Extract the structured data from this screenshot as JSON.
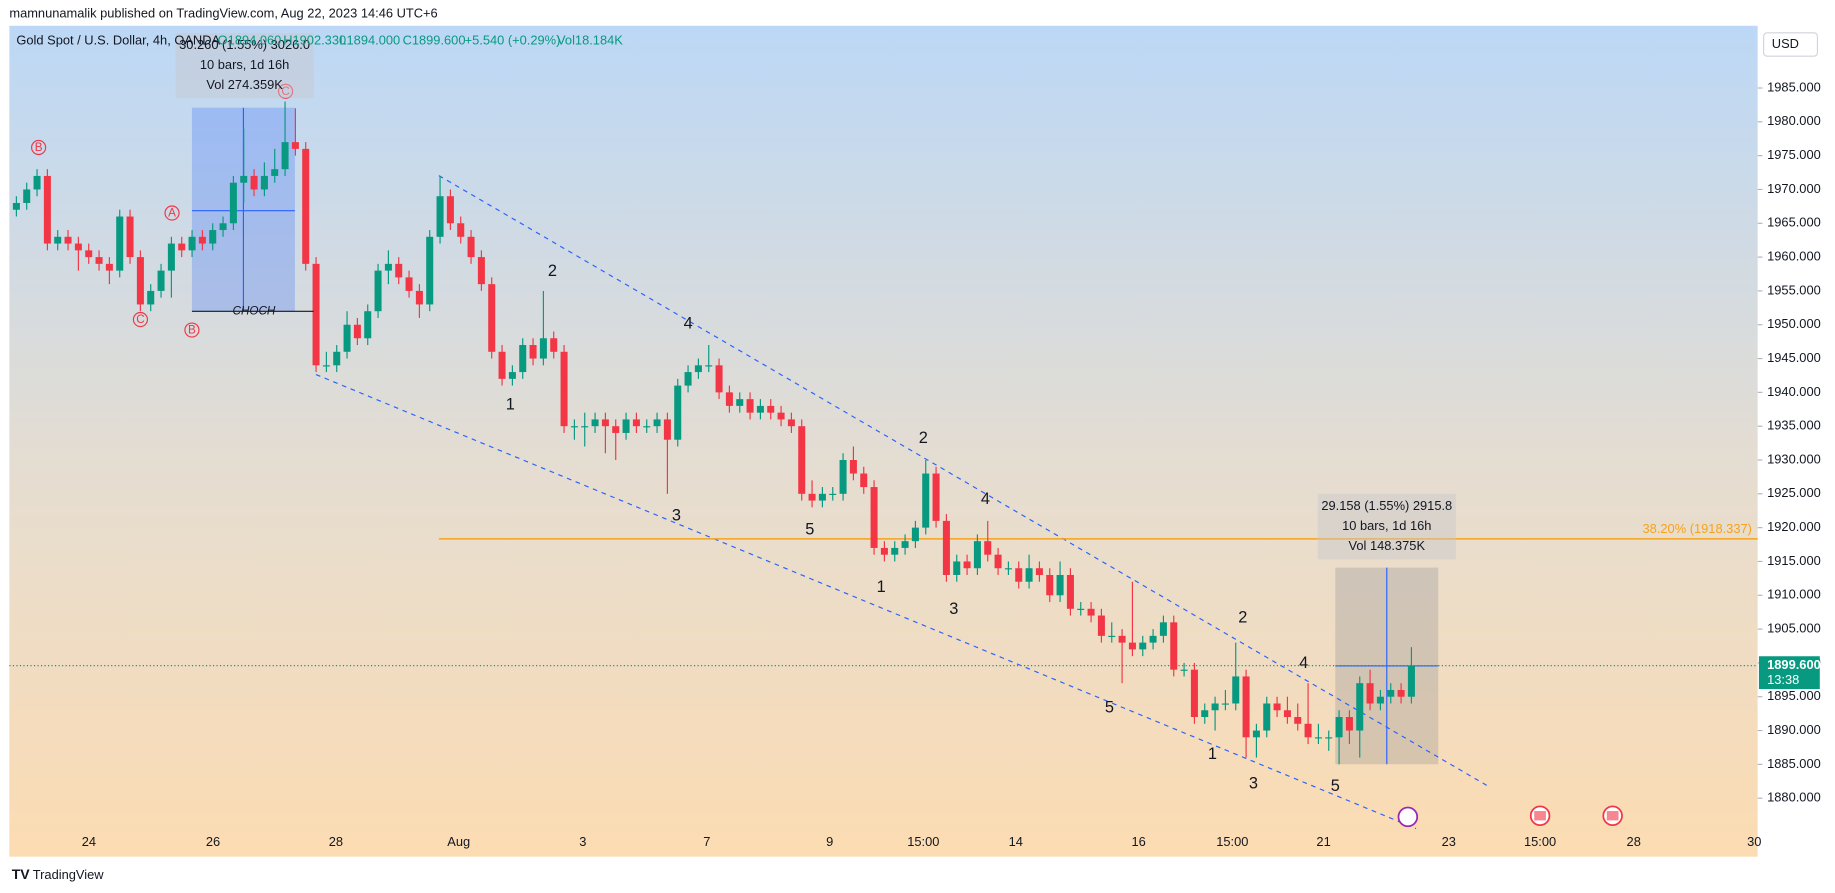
{
  "header": {
    "publisher": "mamnunamalik published on TradingView.com, Aug 22, 2023 14:46 UTC+6",
    "symbol": "Gold Spot / U.S. Dollar, 4h, OANDA",
    "open": "O1894.060",
    "high": "H1902.330",
    "low": "L1894.000",
    "close": "C1899.600",
    "change": "+5.540 (+0.29%)",
    "volume": "Vol18.184K",
    "currency": "USD"
  },
  "footer": {
    "brand": "TradingView"
  },
  "annotations": {
    "waves": [
      "2",
      "4",
      "1",
      "3",
      "5",
      "2",
      "4",
      "1",
      "3",
      "5",
      "2",
      "4",
      "1",
      "3",
      "5"
    ],
    "circled": [
      "B",
      "A",
      "C",
      "B",
      "C"
    ],
    "choch": "CHOCH",
    "measure1": [
      "30.260 (1.55%) 3026.0",
      "10 bars, 1d 16h",
      "Vol 274.359K"
    ],
    "measure2": [
      "29.158 (1.55%) 2915.8",
      "10 bars, 1d 16h",
      "Vol 148.375K"
    ],
    "fib": {
      "label": "38.20% (1918.337)",
      "price": 1918.337
    },
    "last_price": {
      "value": 1899.6,
      "label": "1899.600",
      "countdown": "13:38"
    }
  },
  "chart_data": {
    "type": "candlestick",
    "up_color": "#089981",
    "down_color": "#f23645",
    "grid": false,
    "ylim": [
      1871.35,
      1994.2
    ],
    "yticks": [
      {
        "value": 1880,
        "label": "1880.000"
      },
      {
        "value": 1885,
        "label": "1885.000"
      },
      {
        "value": 1890,
        "label": "1890.000"
      },
      {
        "value": 1895,
        "label": "1895.000"
      },
      {
        "value": 1900,
        "label": "1900.000"
      },
      {
        "value": 1905,
        "label": "1905.000"
      },
      {
        "value": 1910,
        "label": "1910.000"
      },
      {
        "value": 1915,
        "label": "1915.000"
      },
      {
        "value": 1920,
        "label": "1920.000"
      },
      {
        "value": 1925,
        "label": "1925.000"
      },
      {
        "value": 1930,
        "label": "1930.000"
      },
      {
        "value": 1935,
        "label": "1935.000"
      },
      {
        "value": 1940,
        "label": "1940.000"
      },
      {
        "value": 1945,
        "label": "1945.000"
      },
      {
        "value": 1950,
        "label": "1950.000"
      },
      {
        "value": 1955,
        "label": "1955.000"
      },
      {
        "value": 1960,
        "label": "1960.000"
      },
      {
        "value": 1965,
        "label": "1965.000"
      },
      {
        "value": 1970,
        "label": "1970.000"
      },
      {
        "value": 1975,
        "label": "1975.000"
      },
      {
        "value": 1980,
        "label": "1980.000"
      },
      {
        "value": 1985,
        "label": "1985.000"
      }
    ],
    "x_labels": [
      "24",
      "26",
      "28",
      "Aug",
      "3",
      "7",
      "9",
      "15:00",
      "14",
      "16",
      "15:00",
      "21",
      "23",
      "15:00",
      "28",
      "30"
    ],
    "candles": [
      [
        1967,
        1969,
        1966,
        1968
      ],
      [
        1968,
        1971,
        1967,
        1970
      ],
      [
        1970,
        1973,
        1969,
        1972
      ],
      [
        1972,
        1973,
        1961,
        1962
      ],
      [
        1962,
        1964,
        1961,
        1963
      ],
      [
        1963,
        1964,
        1961,
        1962
      ],
      [
        1962,
        1963,
        1958,
        1961
      ],
      [
        1961,
        1962,
        1959,
        1960
      ],
      [
        1960,
        1961,
        1958,
        1959
      ],
      [
        1959,
        1960,
        1956,
        1958
      ],
      [
        1958,
        1967,
        1957,
        1966
      ],
      [
        1966,
        1967,
        1959,
        1960
      ],
      [
        1960,
        1961,
        1952,
        1953
      ],
      [
        1953,
        1956,
        1952,
        1955
      ],
      [
        1955,
        1959,
        1954,
        1958
      ],
      [
        1958,
        1963,
        1954,
        1962
      ],
      [
        1962,
        1963,
        1960,
        1961
      ],
      [
        1961,
        1964,
        1960,
        1963
      ],
      [
        1963,
        1964,
        1961,
        1962
      ],
      [
        1962,
        1965,
        1961,
        1964
      ],
      [
        1964,
        1966,
        1963,
        1965
      ],
      [
        1965,
        1972,
        1964,
        1971
      ],
      [
        1971,
        1979,
        1968,
        1972
      ],
      [
        1972,
        1973,
        1969,
        1970
      ],
      [
        1970,
        1974,
        1969,
        1972
      ],
      [
        1972,
        1976,
        1971,
        1973
      ],
      [
        1973,
        1983,
        1972,
        1977
      ],
      [
        1977,
        1982,
        1975,
        1976
      ],
      [
        1976,
        1977,
        1958,
        1959
      ],
      [
        1959,
        1960,
        1943,
        1944
      ],
      [
        1944,
        1946,
        1943,
        1944
      ],
      [
        1944,
        1947,
        1943,
        1946
      ],
      [
        1946,
        1952,
        1945,
        1950
      ],
      [
        1950,
        1951,
        1947,
        1948
      ],
      [
        1948,
        1953,
        1947,
        1952
      ],
      [
        1952,
        1959,
        1951,
        1958
      ],
      [
        1958,
        1961,
        1956,
        1959
      ],
      [
        1959,
        1960,
        1956,
        1957
      ],
      [
        1957,
        1958,
        1954,
        1955
      ],
      [
        1955,
        1956,
        1951,
        1953
      ],
      [
        1953,
        1964,
        1952,
        1963
      ],
      [
        1963,
        1972,
        1962,
        1969
      ],
      [
        1969,
        1970,
        1964,
        1965
      ],
      [
        1965,
        1966,
        1962,
        1963
      ],
      [
        1963,
        1964,
        1959,
        1960
      ],
      [
        1960,
        1961,
        1955,
        1956
      ],
      [
        1956,
        1957,
        1945,
        1946
      ],
      [
        1946,
        1947,
        1941,
        1942
      ],
      [
        1942,
        1944,
        1941,
        1943
      ],
      [
        1943,
        1948,
        1942,
        1947
      ],
      [
        1947,
        1948,
        1944,
        1945
      ],
      [
        1945,
        1955,
        1944,
        1948
      ],
      [
        1948,
        1949,
        1945,
        1946
      ],
      [
        1946,
        1947,
        1934,
        1935
      ],
      [
        1935,
        1936,
        1933,
        1935
      ],
      [
        1935,
        1937,
        1932,
        1935
      ],
      [
        1935,
        1937,
        1934,
        1936
      ],
      [
        1936,
        1937,
        1931,
        1935
      ],
      [
        1935,
        1936,
        1930,
        1934
      ],
      [
        1934,
        1937,
        1933,
        1936
      ],
      [
        1936,
        1937,
        1934,
        1935
      ],
      [
        1935,
        1936,
        1934,
        1935
      ],
      [
        1935,
        1937,
        1934,
        1936
      ],
      [
        1936,
        1937,
        1925,
        1933
      ],
      [
        1933,
        1942,
        1932,
        1941
      ],
      [
        1941,
        1944,
        1940,
        1943
      ],
      [
        1943,
        1945,
        1942,
        1944
      ],
      [
        1944,
        1947,
        1943,
        1944
      ],
      [
        1944,
        1945,
        1939,
        1940
      ],
      [
        1940,
        1941,
        1937,
        1938
      ],
      [
        1938,
        1940,
        1937,
        1939
      ],
      [
        1939,
        1940,
        1936,
        1937
      ],
      [
        1937,
        1939,
        1936,
        1938
      ],
      [
        1938,
        1939,
        1936,
        1937
      ],
      [
        1937,
        1938,
        1935,
        1936
      ],
      [
        1936,
        1937,
        1934,
        1935
      ],
      [
        1935,
        1936,
        1924,
        1925
      ],
      [
        1925,
        1927,
        1923,
        1924
      ],
      [
        1924,
        1926,
        1923,
        1925
      ],
      [
        1925,
        1926,
        1924,
        1925
      ],
      [
        1925,
        1931,
        1924,
        1930
      ],
      [
        1930,
        1932,
        1927,
        1928
      ],
      [
        1928,
        1929,
        1925,
        1926
      ],
      [
        1926,
        1927,
        1916,
        1917
      ],
      [
        1917,
        1918,
        1915,
        1916
      ],
      [
        1916,
        1918,
        1915,
        1917
      ],
      [
        1917,
        1919,
        1916,
        1918
      ],
      [
        1918,
        1921,
        1917,
        1920
      ],
      [
        1920,
        1930,
        1919,
        1928
      ],
      [
        1928,
        1929,
        1920,
        1921
      ],
      [
        1921,
        1922,
        1912,
        1913
      ],
      [
        1913,
        1916,
        1912,
        1915
      ],
      [
        1915,
        1916,
        1913,
        1914
      ],
      [
        1914,
        1919,
        1913,
        1918
      ],
      [
        1918,
        1921,
        1915,
        1916
      ],
      [
        1916,
        1917,
        1913,
        1914
      ],
      [
        1914,
        1915,
        1913,
        1914
      ],
      [
        1914,
        1915,
        1911,
        1912
      ],
      [
        1912,
        1916,
        1911,
        1914
      ],
      [
        1914,
        1915,
        1912,
        1913
      ],
      [
        1913,
        1914,
        1909,
        1910
      ],
      [
        1910,
        1915,
        1909,
        1913
      ],
      [
        1913,
        1914,
        1907,
        1908
      ],
      [
        1908,
        1909,
        1907,
        1908
      ],
      [
        1908,
        1909,
        1906,
        1907
      ],
      [
        1907,
        1908,
        1903,
        1904
      ],
      [
        1904,
        1906,
        1903,
        1904
      ],
      [
        1904,
        1905,
        1897,
        1903
      ],
      [
        1903,
        1912,
        1901,
        1902
      ],
      [
        1902,
        1904,
        1901,
        1903
      ],
      [
        1903,
        1905,
        1902,
        1904
      ],
      [
        1904,
        1907,
        1903,
        1906
      ],
      [
        1906,
        1907,
        1898,
        1899
      ],
      [
        1899,
        1900,
        1898,
        1899
      ],
      [
        1899,
        1900,
        1891,
        1892
      ],
      [
        1892,
        1894,
        1891,
        1893
      ],
      [
        1893,
        1895,
        1890,
        1894
      ],
      [
        1894,
        1896,
        1893,
        1894
      ],
      [
        1894,
        1903,
        1893,
        1898
      ],
      [
        1898,
        1899,
        1886,
        1889
      ],
      [
        1889,
        1891,
        1886,
        1890
      ],
      [
        1890,
        1895,
        1889,
        1894
      ],
      [
        1894,
        1895,
        1892,
        1893
      ],
      [
        1893,
        1895,
        1891,
        1892
      ],
      [
        1892,
        1894,
        1890,
        1891
      ],
      [
        1891,
        1897,
        1888,
        1889
      ],
      [
        1889,
        1891,
        1888,
        1889
      ],
      [
        1889,
        1890,
        1887,
        1889
      ],
      [
        1889,
        1893,
        1885,
        1892
      ],
      [
        1892,
        1893,
        1888,
        1890
      ],
      [
        1890,
        1898,
        1886,
        1897
      ],
      [
        1897,
        1899,
        1893,
        1894
      ],
      [
        1894,
        1896,
        1893,
        1895
      ],
      [
        1895,
        1897,
        1894,
        1896
      ],
      [
        1896,
        1897,
        1894,
        1895
      ],
      [
        1895,
        1902.33,
        1894,
        1899.6
      ]
    ]
  }
}
